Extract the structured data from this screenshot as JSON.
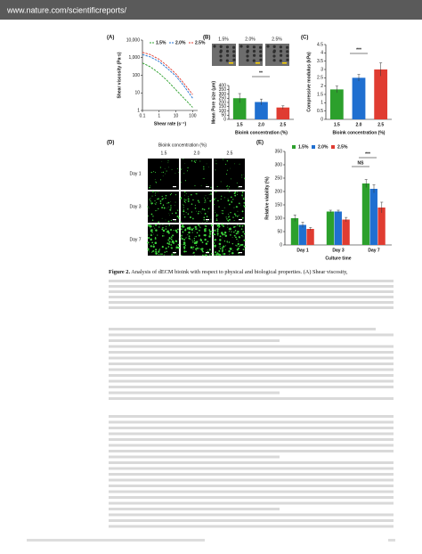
{
  "header": {
    "url": "www.nature.com/scientificreports/"
  },
  "figure": {
    "panel_labels": [
      "(A)",
      "(B)",
      "(C)",
      "(D)",
      "(E)"
    ],
    "sem_labels": [
      "1.5%",
      "2.0%",
      "2.5%"
    ],
    "fluorescence": {
      "title": "Bioink concentration (%)",
      "columns": [
        "1.5",
        "2.0",
        "2.5"
      ],
      "rows": [
        "Day 1",
        "Day 3",
        "Day 7"
      ]
    }
  },
  "chart_data": [
    {
      "type": "line",
      "xlabel": "Shear rate (s⁻¹)",
      "ylabel": "Shear viscosity (Pa·s)",
      "log_x": true,
      "log_y": true,
      "line_style": "dashed",
      "x": [
        0.1,
        0.3,
        1,
        3,
        10,
        30,
        100
      ],
      "series": [
        {
          "name": "1.5%",
          "color": "#2ca02c",
          "values": [
            500,
            300,
            130,
            50,
            15,
            5,
            1.5
          ]
        },
        {
          "name": "2.0%",
          "color": "#1f6fd0",
          "values": [
            1500,
            1100,
            600,
            250,
            90,
            25,
            5
          ]
        },
        {
          "name": "2.5%",
          "color": "#e03c31",
          "values": [
            2000,
            1500,
            800,
            350,
            120,
            35,
            8
          ]
        }
      ],
      "xlim": [
        0.1,
        200
      ],
      "ylim": [
        1,
        10000
      ],
      "xticks": [
        0.1,
        1,
        10,
        100
      ],
      "yticks": [
        1,
        10,
        100,
        {
          "value": 1000,
          "label": "1,000"
        },
        {
          "value": 10000,
          "label": "10,000"
        }
      ]
    },
    {
      "type": "bar",
      "xlabel": "Bioink concentration (%)",
      "ylabel": "Mean Pore size (µm)",
      "categories": [
        "1.5",
        "2.0",
        "2.5"
      ],
      "values": [
        250,
        205,
        140
      ],
      "errors": [
        55,
        35,
        20
      ],
      "colors": [
        "#2ca02c",
        "#1f6fd0",
        "#e03c31"
      ],
      "ylim": [
        0,
        400
      ],
      "yticks": [
        0,
        50,
        100,
        150,
        200,
        250,
        300,
        350,
        400
      ],
      "annotations": [
        "**"
      ]
    },
    {
      "type": "bar",
      "xlabel": "Bioink concentration (%)",
      "ylabel": "Compressive modulus (kPa)",
      "categories": [
        "1.5",
        "2.0",
        "2.5"
      ],
      "values": [
        1.8,
        2.5,
        3.0
      ],
      "errors": [
        0.2,
        0.2,
        0.4
      ],
      "colors": [
        "#2ca02c",
        "#1f6fd0",
        "#e03c31"
      ],
      "ylim": [
        0,
        4.5
      ],
      "yticks": [
        0,
        0.5,
        1,
        1.5,
        2,
        2.5,
        3,
        3.5,
        4,
        4.5
      ],
      "annotations": [
        "***"
      ]
    },
    {
      "type": "bar",
      "xlabel": "Culture time",
      "ylabel": "Relative viability (%)",
      "categories": [
        "Day 1",
        "Day 3",
        "Day 7"
      ],
      "series": [
        {
          "name": "1.5%",
          "color": "#2ca02c",
          "values": [
            100,
            125,
            230
          ],
          "errors": [
            12,
            5,
            15
          ]
        },
        {
          "name": "2.0%",
          "color": "#1f6fd0",
          "values": [
            75,
            125,
            210
          ],
          "errors": [
            10,
            5,
            15
          ]
        },
        {
          "name": "2.5%",
          "color": "#e03c31",
          "values": [
            60,
            95,
            140
          ],
          "errors": [
            5,
            8,
            20
          ]
        }
      ],
      "ylim": [
        0,
        350
      ],
      "yticks": [
        0,
        50,
        100,
        150,
        200,
        250,
        300,
        350
      ],
      "annotations": [
        "NS",
        "***"
      ]
    }
  ],
  "caption": {
    "label": "Figure 2.",
    "text": "Analysis of dECM bioink with respect to physical and biological properties. (A) Shear viscosity,"
  }
}
